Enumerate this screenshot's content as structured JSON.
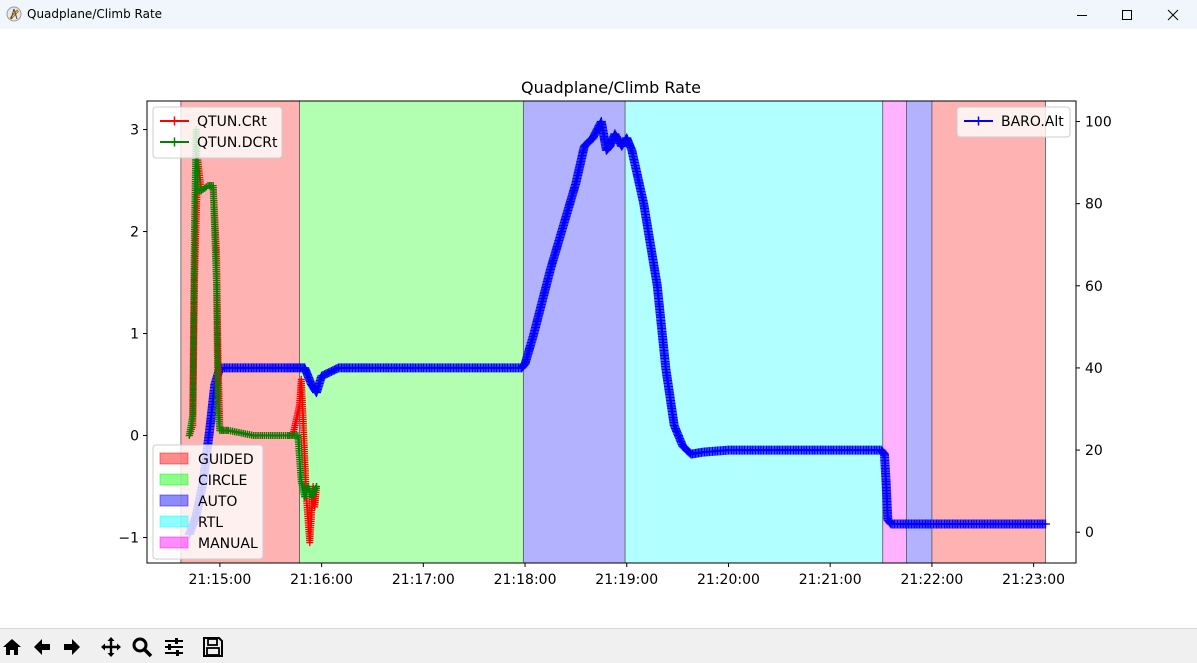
{
  "window": {
    "title": "Quadplane/Climb Rate",
    "app_icon": "pencil-compass-icon",
    "controls": [
      "minimize-icon",
      "maximize-icon",
      "close-icon"
    ]
  },
  "toolbar": {
    "buttons": [
      "home-icon",
      "back-arrow-icon",
      "forward-arrow-icon",
      "pan-icon",
      "zoom-icon",
      "configure-subplots-icon",
      "save-icon"
    ]
  },
  "colors": {
    "qtun_crt": "#ff0000",
    "qtun_dcrt": "#008000",
    "baro_alt": "#0000ff",
    "guided": "#ff0000",
    "circle": "#00ff00",
    "auto": "#0000ff",
    "rtl": "#00ffff",
    "manual": "#ff00ff"
  },
  "chart_data": {
    "type": "line",
    "title": "Quadplane/Climb Rate",
    "xlabel": "",
    "ylabel": "",
    "x_ticks": [
      "21:15:00",
      "21:16:00",
      "21:17:00",
      "21:18:00",
      "21:19:00",
      "21:20:00",
      "21:21:00",
      "21:22:00",
      "21:23:00"
    ],
    "xlim": [
      "21:14:17",
      "21:23:25"
    ],
    "y_left": {
      "ticks": [
        -1,
        0,
        1,
        2,
        3
      ],
      "ylim": [
        -1.25,
        3.28
      ]
    },
    "y_right": {
      "ticks": [
        0,
        20,
        40,
        60,
        80,
        100
      ],
      "ylim": [
        -7.5,
        105
      ]
    },
    "grid": false,
    "legend_left_top": [
      "QTUN.CRt",
      "QTUN.DCRt"
    ],
    "legend_right_top": [
      "BARO.Alt"
    ],
    "legend_modes": [
      "GUIDED",
      "CIRCLE",
      "AUTO",
      "RTL",
      "MANUAL"
    ],
    "mode_regions": [
      {
        "mode": "GUIDED",
        "start": "21:14:37",
        "end": "21:15:47"
      },
      {
        "mode": "CIRCLE",
        "start": "21:15:47",
        "end": "21:17:59"
      },
      {
        "mode": "AUTO",
        "start": "21:17:59",
        "end": "21:18:59"
      },
      {
        "mode": "RTL",
        "start": "21:18:59",
        "end": "21:21:31"
      },
      {
        "mode": "MANUAL",
        "start": "21:21:31",
        "end": "21:21:45"
      },
      {
        "mode": "AUTO",
        "start": "21:21:45",
        "end": "21:22:00"
      },
      {
        "mode": "GUIDED",
        "start": "21:22:00",
        "end": "21:23:07"
      }
    ],
    "series": [
      {
        "name": "QTUN.CRt",
        "axis": "left",
        "x": [
          "21:14:42",
          "21:14:44",
          "21:14:45",
          "21:14:47",
          "21:14:49",
          "21:14:53",
          "21:14:56",
          "21:14:58",
          "21:14:59",
          "21:15:00",
          "21:15:01",
          "21:15:05",
          "21:15:20",
          "21:15:40",
          "21:15:43",
          "21:15:47",
          "21:15:48",
          "21:15:49",
          "21:15:50",
          "21:15:51",
          "21:15:53",
          "21:15:54",
          "21:15:55",
          "21:15:56",
          "21:15:57"
        ],
        "values": [
          0,
          0.1,
          1.5,
          2.7,
          2.4,
          2.45,
          2.45,
          1.8,
          0.7,
          0.05,
          0.05,
          0.05,
          0.0,
          0.0,
          0.0,
          0.3,
          0.55,
          0.2,
          -0.2,
          -0.6,
          -1.05,
          -0.8,
          -0.5,
          -0.7,
          -0.5
        ]
      },
      {
        "name": "QTUN.DCRt",
        "axis": "left",
        "x": [
          "21:14:42",
          "21:14:44",
          "21:14:45",
          "21:14:46",
          "21:14:47",
          "21:14:49",
          "21:14:53",
          "21:14:56",
          "21:14:58",
          "21:14:59",
          "21:15:00",
          "21:15:01",
          "21:15:05",
          "21:15:20",
          "21:15:40",
          "21:15:44",
          "21:15:46",
          "21:15:48",
          "21:15:50",
          "21:15:52",
          "21:15:54",
          "21:15:57"
        ],
        "values": [
          0,
          0.2,
          2.0,
          3.0,
          2.4,
          2.4,
          2.45,
          2.45,
          1.5,
          0.2,
          0.05,
          0.05,
          0.05,
          0.0,
          0.0,
          0.0,
          0.0,
          -0.45,
          -0.6,
          -0.5,
          -0.6,
          -0.5
        ]
      },
      {
        "name": "BARO.Alt",
        "axis": "right",
        "x": [
          "21:14:42",
          "21:14:46",
          "21:14:50",
          "21:14:54",
          "21:14:57",
          "21:15:00",
          "21:15:30",
          "21:15:40",
          "21:15:45",
          "21:15:50",
          "21:15:54",
          "21:15:57",
          "21:16:00",
          "21:16:10",
          "21:16:30",
          "21:17:00",
          "21:17:30",
          "21:17:58",
          "21:18:00",
          "21:18:05",
          "21:18:15",
          "21:18:30",
          "21:18:35",
          "21:18:40",
          "21:18:45",
          "21:18:48",
          "21:18:50",
          "21:18:53",
          "21:18:57",
          "21:19:00",
          "21:19:03",
          "21:19:10",
          "21:19:18",
          "21:19:23",
          "21:19:28",
          "21:19:33",
          "21:19:38",
          "21:19:45",
          "21:20:00",
          "21:20:30",
          "21:21:00",
          "21:21:30",
          "21:21:32",
          "21:21:33",
          "21:21:34",
          "21:21:36",
          "21:22:00",
          "21:22:30",
          "21:23:07"
        ],
        "values": [
          -0.5,
          4,
          12,
          25,
          36,
          40,
          40,
          40,
          40,
          40,
          36,
          34,
          38,
          40,
          40,
          40,
          40,
          40,
          41,
          48,
          64,
          85,
          94,
          96,
          100,
          93,
          94,
          97,
          94,
          96,
          93,
          80,
          60,
          40,
          26,
          21,
          19,
          19.5,
          20,
          20,
          20,
          20,
          19,
          12,
          3,
          2,
          2,
          2,
          2
        ]
      }
    ]
  }
}
